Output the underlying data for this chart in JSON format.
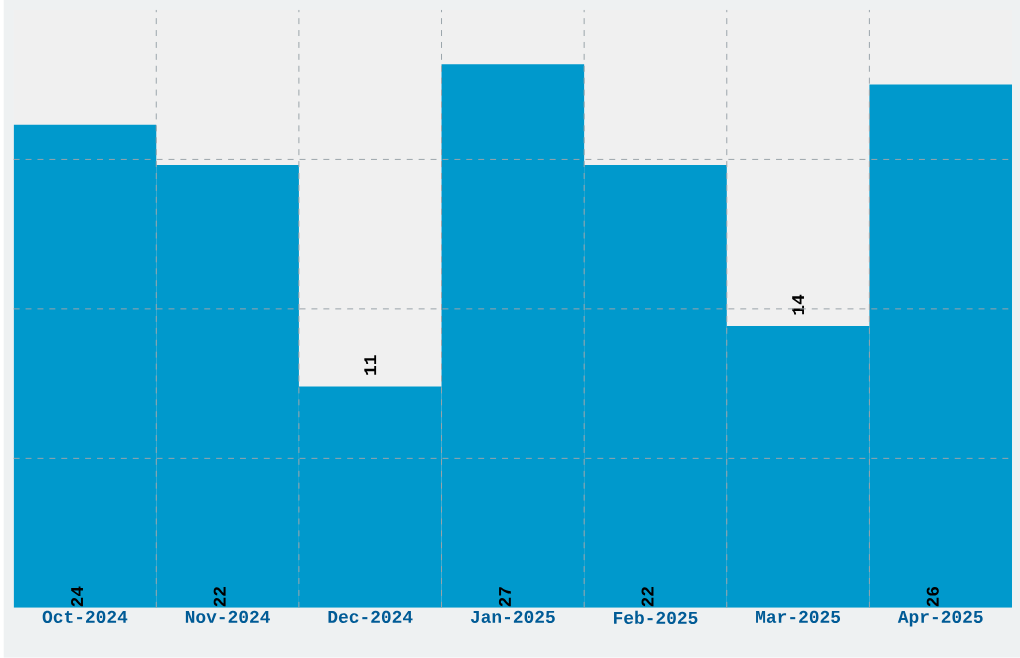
{
  "chart_data": {
    "type": "bar",
    "categories": [
      "Oct-2024",
      "Nov-2024",
      "Dec-2024",
      "Jan-2025",
      "Feb-2025",
      "Mar-2025",
      "Apr-2025"
    ],
    "values": [
      24,
      22,
      11,
      27,
      22,
      14,
      26
    ],
    "color": "#0099cc",
    "ylim": [
      0,
      29.7
    ],
    "yticks": [
      {
        "value": 7.425,
        "label": null
      },
      {
        "value": 14.85,
        "label": null
      },
      {
        "value": 22.275,
        "label": null
      }
    ],
    "grid": true,
    "data_labels": true,
    "tick_labels": "x"
  }
}
